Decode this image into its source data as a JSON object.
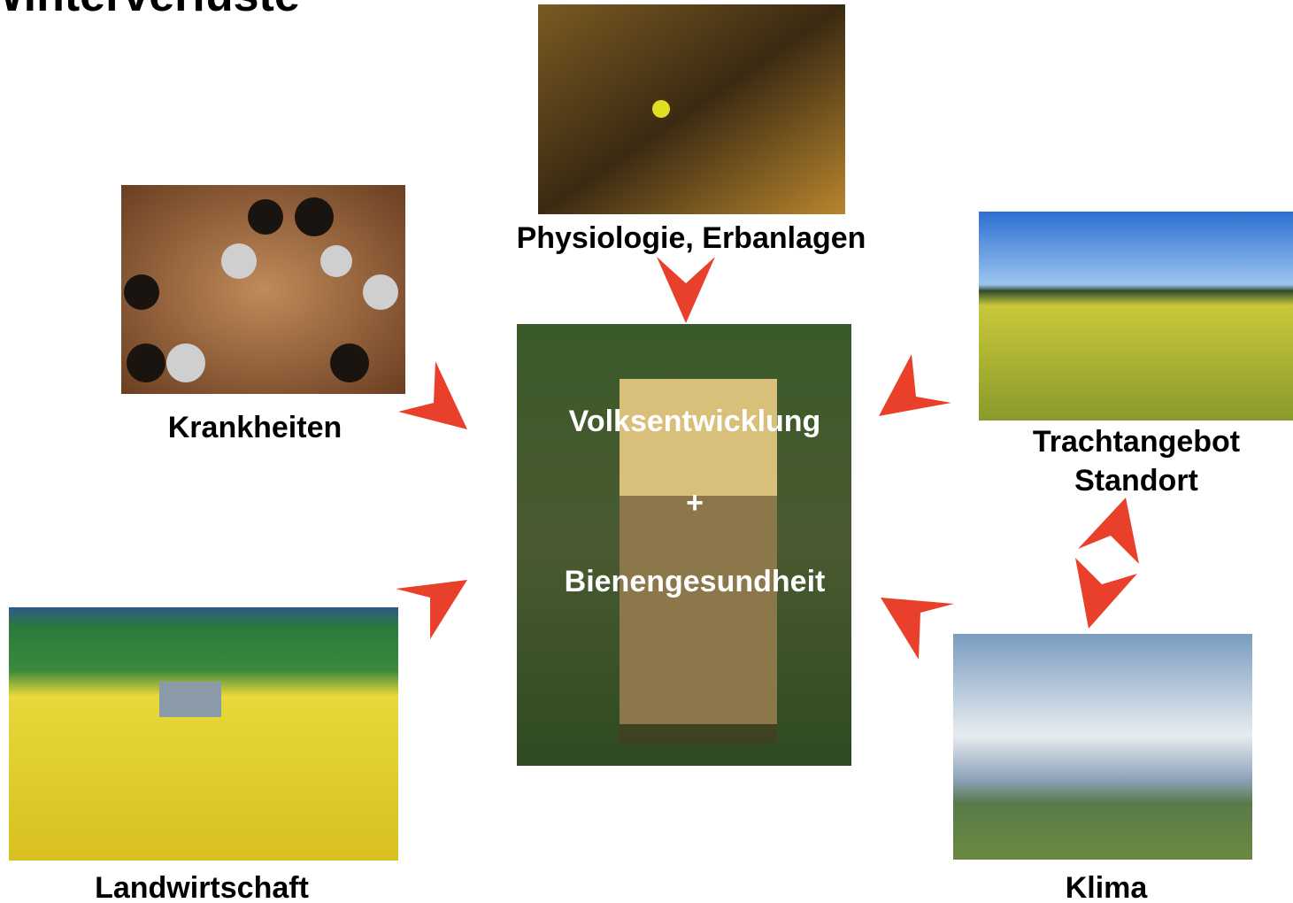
{
  "title": "Winterverluste",
  "center": {
    "lines": [
      "Volksentwicklung",
      "+",
      "Bienengesundheit"
    ]
  },
  "nodes": [
    {
      "lines": [
        "Physiologie, Erbanlagen"
      ]
    },
    {
      "lines": [
        "Krankheiten"
      ]
    },
    {
      "lines": [
        "Trachtangebot",
        "Standort"
      ]
    },
    {
      "lines": [
        "Landwirtschaft"
      ]
    },
    {
      "lines": [
        "Klima"
      ]
    }
  ]
}
